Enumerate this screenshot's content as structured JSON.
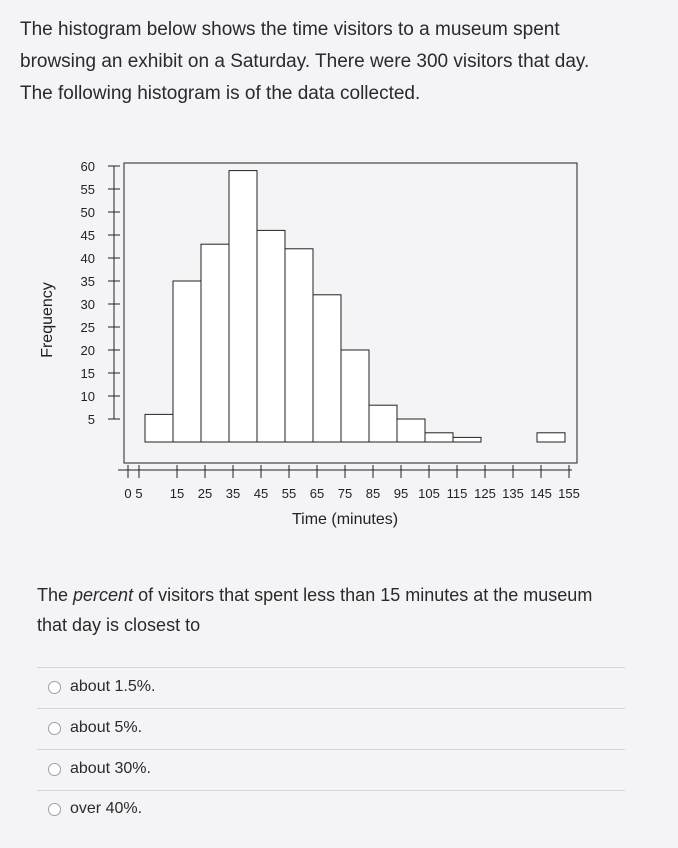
{
  "question": {
    "line1": "The histogram below shows the time visitors to a museum spent",
    "line2": "browsing an exhibit on a Saturday. There were 300 visitors that day.",
    "line3": "The following histogram is of the data collected."
  },
  "prompt": {
    "prefix": "The ",
    "emphasis": "percent",
    "suffix": " of visitors that spent less than 15 minutes at the museum that day is closest to"
  },
  "options": [
    {
      "label": "about 1.5%."
    },
    {
      "label": "about 5%."
    },
    {
      "label": "about 30%."
    },
    {
      "label": "over 40%."
    }
  ],
  "chart_data": {
    "type": "bar",
    "title": "",
    "xlabel": "Time (minutes)",
    "ylabel": "Frequency",
    "categories": [
      "5-15",
      "15-25",
      "25-35",
      "35-45",
      "45-55",
      "55-65",
      "65-75",
      "75-85",
      "85-95",
      "95-105",
      "105-115",
      "115-125",
      "125-135",
      "135-145",
      "145-155"
    ],
    "bin_edges": [
      5,
      15,
      25,
      35,
      45,
      55,
      65,
      75,
      85,
      95,
      105,
      115,
      125,
      135,
      145,
      155
    ],
    "values": [
      6,
      35,
      43,
      59,
      46,
      42,
      32,
      20,
      8,
      5,
      2,
      1,
      0,
      0,
      2
    ],
    "xtick_labels": [
      "0",
      "5",
      "15",
      "25",
      "35",
      "45",
      "55",
      "65",
      "75",
      "85",
      "95",
      "105",
      "115",
      "125",
      "135",
      "145",
      "155"
    ],
    "ytick_labels": [
      "5",
      "10",
      "15",
      "20",
      "25",
      "30",
      "35",
      "40",
      "45",
      "50",
      "55",
      "60"
    ],
    "ylim": [
      0,
      63
    ],
    "grid": false,
    "colors": {
      "bar_fill": "#ffffff",
      "bar_stroke": "#222222"
    }
  }
}
